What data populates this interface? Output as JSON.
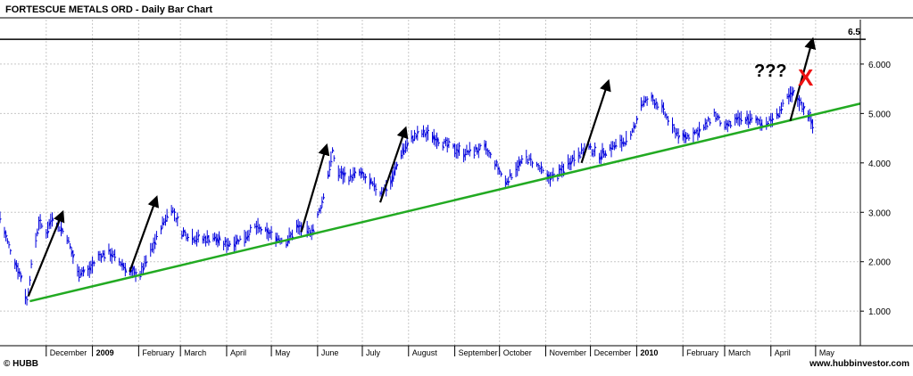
{
  "header": {
    "title": "FORTESCUE METALS ORD - Daily Bar Chart"
  },
  "footer": {
    "copyright": "© HUBB",
    "website": "www.hubbinvestor.com"
  },
  "annotations": {
    "question": "???",
    "cross": "X",
    "resistance_label": "6.5"
  },
  "colors": {
    "price": "#0000dd",
    "trend": "#22aa22",
    "arrow": "#000000",
    "cross": "#ee1111",
    "resistance": "#000000",
    "grid": "#c8c8c8"
  },
  "chart_data": {
    "type": "bar",
    "title": "FORTESCUE METALS ORD - Daily Bar Chart",
    "y_axis": {
      "ticks": [
        "1.000",
        "2.000",
        "3.000",
        "4.000",
        "5.000",
        "6.000"
      ],
      "ylim": [
        0.3,
        6.9
      ],
      "position": "right"
    },
    "x_axis": {
      "labels": [
        {
          "text": "December",
          "month": "2008-12",
          "bold": false
        },
        {
          "text": "2009",
          "month": "2009-01",
          "bold": true
        },
        {
          "text": "February",
          "month": "2009-02",
          "bold": false
        },
        {
          "text": "March",
          "month": "2009-03",
          "bold": false
        },
        {
          "text": "April",
          "month": "2009-04",
          "bold": false
        },
        {
          "text": "May",
          "month": "2009-05",
          "bold": false
        },
        {
          "text": "June",
          "month": "2009-06",
          "bold": false
        },
        {
          "text": "July",
          "month": "2009-07",
          "bold": false
        },
        {
          "text": "August",
          "month": "2009-08",
          "bold": false
        },
        {
          "text": "September",
          "month": "2009-09",
          "bold": false
        },
        {
          "text": "October",
          "month": "2009-10",
          "bold": false
        },
        {
          "text": "November",
          "month": "2009-11",
          "bold": false
        },
        {
          "text": "December",
          "month": "2009-12",
          "bold": false
        },
        {
          "text": "2010",
          "month": "2010-01",
          "bold": true
        },
        {
          "text": "February",
          "month": "2010-02",
          "bold": false
        },
        {
          "text": "March",
          "month": "2010-03",
          "bold": false
        },
        {
          "text": "April",
          "month": "2010-04",
          "bold": false
        },
        {
          "text": "May",
          "month": "2010-05",
          "bold": false
        }
      ]
    },
    "series": [
      {
        "price_path": [
          [
            "2008-10-31",
            2.9
          ],
          [
            "2008-11-05",
            2.4
          ],
          [
            "2008-11-10",
            2.0
          ],
          [
            "2008-11-14",
            1.7
          ],
          [
            "2008-11-18",
            1.2
          ],
          [
            "2008-11-21",
            1.9
          ],
          [
            "2008-11-26",
            2.8
          ],
          [
            "2008-12-01",
            2.6
          ],
          [
            "2008-12-05",
            2.9
          ],
          [
            "2008-12-10",
            2.7
          ],
          [
            "2008-12-15",
            2.5
          ],
          [
            "2008-12-18",
            2.2
          ],
          [
            "2008-12-22",
            1.8
          ],
          [
            "2008-12-29",
            1.8
          ],
          [
            "2009-01-05",
            2.1
          ],
          [
            "2009-01-12",
            2.2
          ],
          [
            "2009-01-19",
            2.0
          ],
          [
            "2009-01-26",
            1.8
          ],
          [
            "2009-02-02",
            1.75
          ],
          [
            "2009-02-09",
            2.2
          ],
          [
            "2009-02-16",
            2.7
          ],
          [
            "2009-02-23",
            3.1
          ],
          [
            "2009-03-02",
            2.6
          ],
          [
            "2009-03-09",
            2.5
          ],
          [
            "2009-03-16",
            2.45
          ],
          [
            "2009-03-23",
            2.5
          ],
          [
            "2009-03-30",
            2.35
          ],
          [
            "2009-04-06",
            2.4
          ],
          [
            "2009-04-13",
            2.5
          ],
          [
            "2009-04-20",
            2.7
          ],
          [
            "2009-04-27",
            2.6
          ],
          [
            "2009-05-04",
            2.5
          ],
          [
            "2009-05-11",
            2.4
          ],
          [
            "2009-05-18",
            2.7
          ],
          [
            "2009-05-25",
            2.6
          ],
          [
            "2009-05-29",
            2.65
          ],
          [
            "2009-06-04",
            3.2
          ],
          [
            "2009-06-11",
            4.2
          ],
          [
            "2009-06-15",
            3.8
          ],
          [
            "2009-06-22",
            3.7
          ],
          [
            "2009-06-29",
            3.8
          ],
          [
            "2009-07-06",
            3.6
          ],
          [
            "2009-07-13",
            3.4
          ],
          [
            "2009-07-20",
            3.6
          ],
          [
            "2009-07-27",
            4.2
          ],
          [
            "2009-08-03",
            4.5
          ],
          [
            "2009-08-10",
            4.6
          ],
          [
            "2009-08-17",
            4.55
          ],
          [
            "2009-08-24",
            4.4
          ],
          [
            "2009-08-31",
            4.3
          ],
          [
            "2009-09-07",
            4.2
          ],
          [
            "2009-09-14",
            4.25
          ],
          [
            "2009-09-21",
            4.3
          ],
          [
            "2009-09-28",
            4.0
          ],
          [
            "2009-10-05",
            3.6
          ],
          [
            "2009-10-12",
            3.9
          ],
          [
            "2009-10-19",
            4.1
          ],
          [
            "2009-10-26",
            3.95
          ],
          [
            "2009-11-02",
            3.7
          ],
          [
            "2009-11-09",
            3.75
          ],
          [
            "2009-11-16",
            4.0
          ],
          [
            "2009-11-23",
            4.2
          ],
          [
            "2009-11-30",
            4.3
          ],
          [
            "2009-12-07",
            4.15
          ],
          [
            "2009-12-14",
            4.3
          ],
          [
            "2009-12-21",
            4.4
          ],
          [
            "2009-12-28",
            4.5
          ],
          [
            "2010-01-04",
            5.2
          ],
          [
            "2010-01-11",
            5.3
          ],
          [
            "2010-01-18",
            5.1
          ],
          [
            "2010-01-25",
            4.7
          ],
          [
            "2010-02-01",
            4.5
          ],
          [
            "2010-02-08",
            4.6
          ],
          [
            "2010-02-15",
            4.7
          ],
          [
            "2010-02-22",
            5.0
          ],
          [
            "2010-03-01",
            4.7
          ],
          [
            "2010-03-08",
            4.85
          ],
          [
            "2010-03-15",
            4.9
          ],
          [
            "2010-03-22",
            4.85
          ],
          [
            "2010-03-29",
            4.8
          ],
          [
            "2010-04-05",
            4.95
          ],
          [
            "2010-04-12",
            5.3
          ],
          [
            "2010-04-16",
            5.4
          ],
          [
            "2010-04-20",
            5.25
          ],
          [
            "2010-04-26",
            5.0
          ],
          [
            "2010-04-30",
            4.65
          ]
        ]
      }
    ],
    "trendline": {
      "from": [
        "2008-11-20",
        1.2
      ],
      "to": [
        "2010-05-31",
        5.2
      ]
    },
    "resistance_line": {
      "y": 6.5
    },
    "arrows": [
      {
        "from": [
          "2008-11-19",
          1.3
        ],
        "to": [
          "2008-12-12",
          3.0
        ]
      },
      {
        "from": [
          "2009-01-26",
          1.8
        ],
        "to": [
          "2009-02-13",
          3.3
        ]
      },
      {
        "from": [
          "2009-05-21",
          2.6
        ],
        "to": [
          "2009-06-07",
          4.35
        ]
      },
      {
        "from": [
          "2009-07-13",
          3.2
        ],
        "to": [
          "2009-07-30",
          4.7
        ]
      },
      {
        "from": [
          "2009-11-25",
          4.0
        ],
        "to": [
          "2009-12-13",
          5.65
        ]
      },
      {
        "from": [
          "2010-04-14",
          4.85
        ],
        "to": [
          "2010-04-29",
          6.5
        ]
      }
    ]
  }
}
